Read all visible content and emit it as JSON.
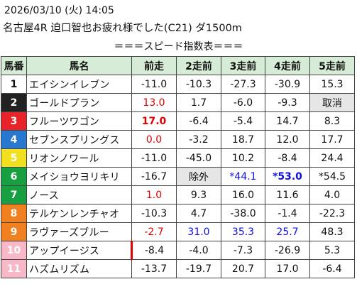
{
  "header": {
    "datetime": "2026/03/10 (火) 14:05",
    "race": "名古屋4R 迫口智也お疲れ様でした(C21) ダ1500m"
  },
  "table_title": "＝＝＝スピード指数表＝＝＝",
  "columns": [
    "馬番",
    "馬名",
    "前走",
    "2走前",
    "3走前",
    "4走前",
    "5走前"
  ],
  "colors": {
    "header_bg": "#d6ecd6",
    "gate": [
      "#ffffff",
      "#222222",
      "#e8242a",
      "#2878d0",
      "#f0e020",
      "#18a040",
      "#f08020",
      "#f08020",
      "#f8b8c8",
      "#f8b8c8"
    ]
  },
  "rows": [
    {
      "ban": "1",
      "name": "エイシンイレブン",
      "c1": "-11.0",
      "c2": "-10.3",
      "c3": "-27.3",
      "c4": "-30.9",
      "c5": "15.3"
    },
    {
      "ban": "2",
      "name": "ゴールドプラン",
      "c1": "13.0",
      "c2": "1.7",
      "c3": "-6.0",
      "c4": "-9.3",
      "c5": "取消"
    },
    {
      "ban": "3",
      "name": "フルーツワゴン",
      "c1": "17.0",
      "c2": "-6.4",
      "c3": "-5.4",
      "c4": "14.7",
      "c5": "8.3"
    },
    {
      "ban": "4",
      "name": "セブンスプリングス",
      "c1": "0.0",
      "c2": "-3.2",
      "c3": "18.7",
      "c4": "12.0",
      "c5": "17.7"
    },
    {
      "ban": "5",
      "name": "リオンノワール",
      "c1": "-11.0",
      "c2": "-45.0",
      "c3": "10.2",
      "c4": "-8.4",
      "c5": "24.4"
    },
    {
      "ban": "6",
      "name": "メイショウヨリキリ",
      "c1": "-16.7",
      "c2": "除外",
      "c3": "*44.1",
      "c4": "*53.0",
      "c5": "*54.5"
    },
    {
      "ban": "7",
      "name": "ノース",
      "c1": "1.0",
      "c2": "9.3",
      "c3": "16.0",
      "c4": "11.6",
      "c5": "4.0"
    },
    {
      "ban": "8",
      "name": "テルケンレンチャオ",
      "c1": "-10.3",
      "c2": "4.7",
      "c3": "-38.0",
      "c4": "-1.4",
      "c5": "-22.3"
    },
    {
      "ban": "9",
      "name": "ラヴァーズブルー",
      "c1": "-2.7",
      "c2": "31.0",
      "c3": "35.3",
      "c4": "25.7",
      "c5": "48.3"
    },
    {
      "ban": "10",
      "name": "アップイージス",
      "c1": "-8.4",
      "c2": "-4.0",
      "c3": "-7.3",
      "c4": "-26.9",
      "c5": "5.3"
    },
    {
      "ban": "11",
      "name": "ハズムリズム",
      "c1": "-13.7",
      "c2": "-19.7",
      "c3": "20.7",
      "c4": "17.0",
      "c5": "-6.4"
    }
  ]
}
